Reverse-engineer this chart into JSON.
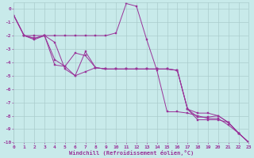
{
  "bg_color": "#c8eaea",
  "line_color": "#993399",
  "grid_color": "#aacccc",
  "xlim": [
    0,
    23
  ],
  "ylim": [
    -10,
    0.5
  ],
  "xticks": [
    0,
    1,
    2,
    3,
    4,
    5,
    6,
    7,
    8,
    9,
    10,
    11,
    12,
    13,
    14,
    15,
    16,
    17,
    18,
    19,
    20,
    21,
    22,
    23
  ],
  "yticks": [
    0,
    -1,
    -2,
    -3,
    -4,
    -5,
    -6,
    -7,
    -8,
    -9,
    -10
  ],
  "xlabel": "Windchill (Refroidissement éolien,°C)",
  "series1_x": [
    0,
    1,
    2,
    3,
    4,
    5,
    6,
    7,
    8,
    9,
    10,
    11,
    12,
    13,
    14,
    15,
    16,
    17,
    18,
    19,
    20,
    21,
    22,
    23
  ],
  "series1_y": [
    -0.5,
    -2.0,
    -2.0,
    -2.0,
    -2.0,
    -2.0,
    -2.0,
    -2.0,
    -2.0,
    -2.0,
    -1.8,
    0.4,
    0.2,
    -2.3,
    -4.6,
    -7.7,
    -7.7,
    -7.8,
    -8.0,
    -8.2,
    -8.2,
    -8.7,
    -9.3,
    -10.0
  ],
  "series2_x": [
    0,
    1,
    2,
    3,
    4,
    5,
    6,
    7,
    8,
    9,
    10,
    11,
    12,
    13,
    14,
    15,
    16,
    17,
    18,
    19,
    20,
    21,
    22,
    23
  ],
  "series2_y": [
    -0.5,
    -2.0,
    -2.2,
    -2.0,
    -3.8,
    -4.3,
    -3.3,
    -3.5,
    -4.4,
    -4.5,
    -4.5,
    -4.5,
    -4.5,
    -4.5,
    -4.5,
    -4.5,
    -4.6,
    -7.5,
    -8.3,
    -8.3,
    -8.3,
    -8.5,
    -9.3,
    -10.0
  ],
  "series3_x": [
    0,
    1,
    2,
    3,
    4,
    5,
    6,
    7,
    8,
    9,
    10,
    11,
    12,
    13,
    14,
    15,
    16,
    17,
    18,
    19,
    20,
    21,
    22,
    23
  ],
  "series3_y": [
    -0.5,
    -2.0,
    -2.2,
    -2.0,
    -2.5,
    -4.5,
    -5.0,
    -3.2,
    -4.4,
    -4.5,
    -4.5,
    -4.5,
    -4.5,
    -4.5,
    -4.5,
    -4.5,
    -4.6,
    -7.5,
    -8.1,
    -8.1,
    -8.0,
    -8.5,
    -9.3,
    -10.0
  ],
  "series4_x": [
    0,
    1,
    2,
    3,
    4,
    5,
    6,
    7,
    8,
    9,
    10,
    11,
    12,
    13,
    14,
    15,
    16,
    17,
    18,
    19,
    20,
    21,
    22,
    23
  ],
  "series4_y": [
    -0.5,
    -2.0,
    -2.3,
    -2.0,
    -4.2,
    -4.3,
    -5.0,
    -4.7,
    -4.4,
    -4.5,
    -4.5,
    -4.5,
    -4.5,
    -4.5,
    -4.5,
    -4.5,
    -4.6,
    -7.5,
    -7.8,
    -7.8,
    -8.0,
    -8.5,
    -9.3,
    -10.0
  ]
}
